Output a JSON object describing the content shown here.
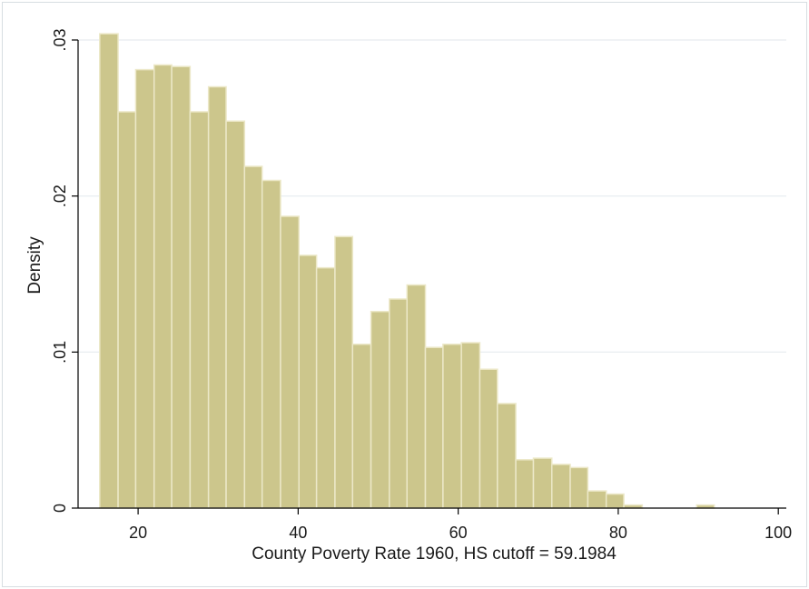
{
  "chart_data": {
    "type": "bar",
    "xlabel": "County Poverty Rate 1960, HS cutoff = 59.1984",
    "ylabel": "Density",
    "xlim": [
      12.5,
      101
    ],
    "ylim": [
      0,
      0.03
    ],
    "x_ticks": [
      20,
      40,
      60,
      80,
      100
    ],
    "x_tick_labels": [
      "20",
      "40",
      "60",
      "80",
      "100"
    ],
    "y_ticks": [
      0,
      0.01,
      0.02,
      0.03
    ],
    "y_tick_labels": [
      "0",
      ".01",
      ".02",
      ".03"
    ],
    "grid": true,
    "colors": {
      "bar_fill": "#ccc68c",
      "bar_edge": "#ece8c8",
      "grid": "#e6ebef",
      "axis": "#000000"
    },
    "bins": [
      {
        "x0": 15.2,
        "x1": 17.5,
        "value": 0.0304
      },
      {
        "x0": 17.5,
        "x1": 19.7,
        "value": 0.0254
      },
      {
        "x0": 19.7,
        "x1": 22.0,
        "value": 0.0281
      },
      {
        "x0": 22.0,
        "x1": 24.2,
        "value": 0.0284
      },
      {
        "x0": 24.2,
        "x1": 26.5,
        "value": 0.0283
      },
      {
        "x0": 26.5,
        "x1": 28.8,
        "value": 0.0254
      },
      {
        "x0": 28.8,
        "x1": 31.0,
        "value": 0.027
      },
      {
        "x0": 31.0,
        "x1": 33.3,
        "value": 0.0248
      },
      {
        "x0": 33.3,
        "x1": 35.5,
        "value": 0.0219
      },
      {
        "x0": 35.5,
        "x1": 37.8,
        "value": 0.021
      },
      {
        "x0": 37.8,
        "x1": 40.1,
        "value": 0.0187
      },
      {
        "x0": 40.1,
        "x1": 42.3,
        "value": 0.0162
      },
      {
        "x0": 42.3,
        "x1": 44.6,
        "value": 0.0154
      },
      {
        "x0": 44.6,
        "x1": 46.8,
        "value": 0.0174
      },
      {
        "x0": 46.8,
        "x1": 49.1,
        "value": 0.0105
      },
      {
        "x0": 49.1,
        "x1": 51.4,
        "value": 0.0126
      },
      {
        "x0": 51.4,
        "x1": 53.6,
        "value": 0.0134
      },
      {
        "x0": 53.6,
        "x1": 55.9,
        "value": 0.0143
      },
      {
        "x0": 55.9,
        "x1": 58.1,
        "value": 0.0103
      },
      {
        "x0": 58.1,
        "x1": 60.4,
        "value": 0.0105
      },
      {
        "x0": 60.4,
        "x1": 62.7,
        "value": 0.0106
      },
      {
        "x0": 62.7,
        "x1": 64.9,
        "value": 0.0089
      },
      {
        "x0": 64.9,
        "x1": 67.2,
        "value": 0.0067
      },
      {
        "x0": 67.2,
        "x1": 69.4,
        "value": 0.0031
      },
      {
        "x0": 69.4,
        "x1": 71.7,
        "value": 0.0032
      },
      {
        "x0": 71.7,
        "x1": 74.0,
        "value": 0.0028
      },
      {
        "x0": 74.0,
        "x1": 76.2,
        "value": 0.0026
      },
      {
        "x0": 76.2,
        "x1": 78.5,
        "value": 0.0011
      },
      {
        "x0": 78.5,
        "x1": 80.7,
        "value": 0.0009
      },
      {
        "x0": 80.7,
        "x1": 83.0,
        "value": 0.0002
      },
      {
        "x0": 83.0,
        "x1": 85.3,
        "value": 0.0
      },
      {
        "x0": 85.3,
        "x1": 87.5,
        "value": 0.0
      },
      {
        "x0": 87.5,
        "x1": 89.8,
        "value": 0.0
      },
      {
        "x0": 89.8,
        "x1": 92.0,
        "value": 0.0002
      }
    ]
  }
}
